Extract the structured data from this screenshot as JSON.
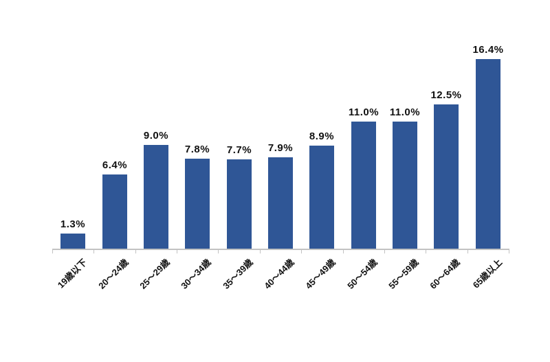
{
  "chart_data": {
    "type": "bar",
    "categories": [
      "19歳以下",
      "20〜24歳",
      "25〜29歳",
      "30〜34歳",
      "35〜39歳",
      "40〜44歳",
      "45〜49歳",
      "50〜54歳",
      "55〜59歳",
      "60〜64歳",
      "65歳以上"
    ],
    "values": [
      1.3,
      6.4,
      9.0,
      7.8,
      7.7,
      7.9,
      8.9,
      11.0,
      11.0,
      12.5,
      16.4
    ],
    "labels": [
      "1.3%",
      "6.4%",
      "9.0%",
      "7.8%",
      "7.7%",
      "7.9%",
      "8.9%",
      "11.0%",
      "11.0%",
      "12.5%",
      "16.4%"
    ],
    "title": "",
    "xlabel": "",
    "ylabel": "",
    "ylim": [
      0,
      17
    ],
    "grid": false,
    "legend": null,
    "colors": {
      "bar": "#2F5696",
      "data_label": "#111111",
      "axis": "#C2C2C2",
      "tick_label": "#111111",
      "background": "#FFFFFF"
    }
  }
}
